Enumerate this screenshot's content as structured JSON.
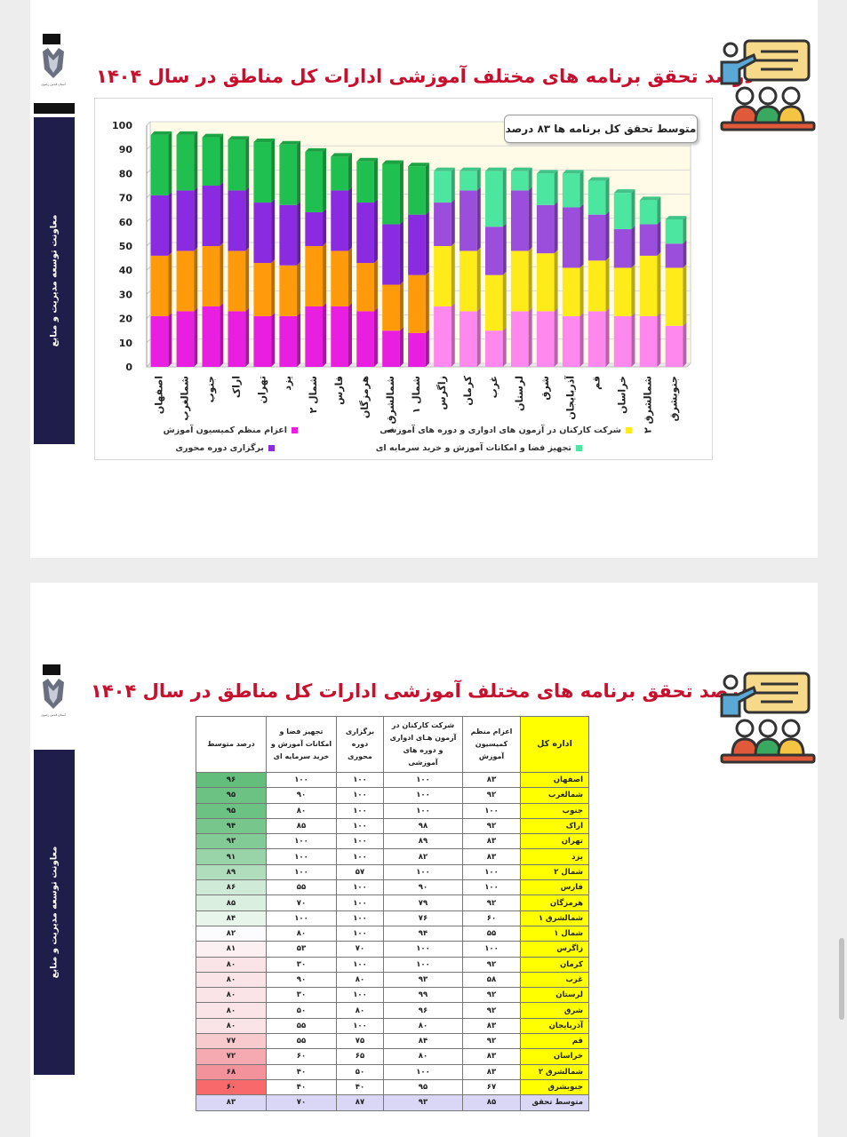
{
  "sidebar_text": "معاونت توسعه مدیریت و منابع",
  "logo_caption": "آستان قدس رضوی",
  "slide1": {
    "title": "درصد تحقق برنامه های مختلف آموزشی ادارات کل مناطق در سال ۱۴۰۴",
    "callout": "متوسط تحقق کل برنامه ها ۸۳ درصد",
    "legend": [
      {
        "label": "اعزام منظم کمیسیون آموزش",
        "color": "#e81ee0"
      },
      {
        "label": "شرکت کارکنان در آزمون های ادواری و دوره های آموزشی",
        "color": "#ffeb1a"
      },
      {
        "label": "برگزاری دوره محوری",
        "color": "#8a2be2"
      },
      {
        "label": "تجهیز فضا و امکانات آموزش و خرید سرمایه ای",
        "color": "#4de6a0"
      }
    ]
  },
  "chart_data": {
    "type": "bar",
    "stacked": true,
    "title": "درصد تحقق برنامه های مختلف آموزشی ادارات کل مناطق در سال ۱۴۰۴",
    "ylim": [
      0,
      100
    ],
    "yticks": [
      0,
      10,
      20,
      30,
      40,
      50,
      60,
      70,
      80,
      90,
      100
    ],
    "grid": true,
    "legend_position": "bottom",
    "categories": [
      "اصفهان",
      "شمالغرب",
      "جنوب",
      "اراک",
      "تهران",
      "یزد",
      "شمال ۲",
      "فارس",
      "هرمزگان",
      "شمالشرق ۱",
      "شمال ۱",
      "زاگرس",
      "کرمان",
      "غرب",
      "لرستان",
      "شرق",
      "آذربایجان",
      "قم",
      "خراسان",
      "شمالشرق ۲",
      "جنوبشرق"
    ],
    "group_colors": [
      {
        "group": 1,
        "count": 11,
        "colors": [
          "#e81ee0",
          "#ff9a0a",
          "#8a2be2",
          "#20c050"
        ]
      },
      {
        "group": 2,
        "count": 10,
        "colors": [
          "#ff88ee",
          "#ffeb1a",
          "#9b4ddb",
          "#4de6a0"
        ]
      }
    ],
    "series": [
      {
        "name": "اعزام منظم کمیسیون آموزش",
        "values": [
          21,
          23,
          25,
          23,
          21,
          21,
          25,
          25,
          23,
          15,
          14,
          25,
          23,
          15,
          23,
          23,
          21,
          23,
          21,
          21,
          17
        ]
      },
      {
        "name": "شرکت کارکنان در آزمون های ادواری و دوره های آموزشی",
        "values": [
          25,
          25,
          25,
          25,
          22,
          21,
          25,
          23,
          20,
          19,
          24,
          25,
          25,
          23,
          25,
          24,
          20,
          21,
          20,
          25,
          24
        ]
      },
      {
        "name": "برگزاری دوره محوری",
        "values": [
          25,
          25,
          25,
          25,
          25,
          25,
          14,
          25,
          25,
          25,
          25,
          18,
          25,
          20,
          25,
          20,
          25,
          19,
          16,
          13,
          10
        ]
      },
      {
        "name": "تجهیز فضا و امکانات آموزش و خرید سرمایه ای",
        "values": [
          25,
          23,
          20,
          21,
          25,
          25,
          25,
          14,
          17,
          25,
          20,
          13,
          8,
          23,
          8,
          13,
          14,
          14,
          15,
          10,
          10
        ]
      }
    ],
    "totals": [
      96,
      95,
      95,
      94,
      93,
      91,
      89,
      86,
      85,
      84,
      82,
      81,
      80,
      80,
      80,
      80,
      80,
      77,
      72,
      68,
      60
    ]
  },
  "slide2": {
    "title": "درصد تحقق برنامه های مختلف آموزشی ادارات کل مناطق در سال ۱۴۰۴",
    "headers": {
      "office": "اداره کل",
      "commission": "اعزام منظم کمیسیون آموزش",
      "exams": "شرکت کارکنان در آزمون هـای ادواری و دوره های آموزشی",
      "core": "برگزاری دوره محوری",
      "equip": "تجهیز فضا و امکانات آموزش و خرید سرمایه ای",
      "avg": "درصد متوسط"
    },
    "rows": [
      {
        "office": "اصفهان",
        "commission": "۸۳",
        "exams": "۱۰۰",
        "core": "۱۰۰",
        "equip": "۱۰۰",
        "avg": "۹۶",
        "avg_color": "#63be7b"
      },
      {
        "office": "شمالغرب",
        "commission": "۹۲",
        "exams": "۱۰۰",
        "core": "۱۰۰",
        "equip": "۹۰",
        "avg": "۹۵",
        "avg_color": "#6cc283"
      },
      {
        "office": "جنوب",
        "commission": "۱۰۰",
        "exams": "۱۰۰",
        "core": "۱۰۰",
        "equip": "۸۰",
        "avg": "۹۵",
        "avg_color": "#6cc283"
      },
      {
        "office": "اراک",
        "commission": "۹۲",
        "exams": "۹۸",
        "core": "۱۰۰",
        "equip": "۸۵",
        "avg": "۹۴",
        "avg_color": "#77c68c"
      },
      {
        "office": "تهران",
        "commission": "۸۳",
        "exams": "۸۹",
        "core": "۱۰۰",
        "equip": "۱۰۰",
        "avg": "۹۳",
        "avg_color": "#83cb96"
      },
      {
        "office": "یزد",
        "commission": "۸۳",
        "exams": "۸۲",
        "core": "۱۰۰",
        "equip": "۱۰۰",
        "avg": "۹۱",
        "avg_color": "#99d4a8"
      },
      {
        "office": "شمال ۲",
        "commission": "۱۰۰",
        "exams": "۱۰۰",
        "core": "۵۷",
        "equip": "۱۰۰",
        "avg": "۸۹",
        "avg_color": "#b0ddbb"
      },
      {
        "office": "فارس",
        "commission": "۱۰۰",
        "exams": "۹۰",
        "core": "۱۰۰",
        "equip": "۵۵",
        "avg": "۸۶",
        "avg_color": "#cfead6"
      },
      {
        "office": "هرمزگان",
        "commission": "۹۲",
        "exams": "۷۹",
        "core": "۱۰۰",
        "equip": "۷۰",
        "avg": "۸۵",
        "avg_color": "#dbefe0"
      },
      {
        "office": "شمالشرق ۱",
        "commission": "۶۰",
        "exams": "۷۶",
        "core": "۱۰۰",
        "equip": "۱۰۰",
        "avg": "۸۴",
        "avg_color": "#e8f5eb"
      },
      {
        "office": "شمال ۱",
        "commission": "۵۵",
        "exams": "۹۴",
        "core": "۱۰۰",
        "equip": "۸۰",
        "avg": "۸۲",
        "avg_color": "#fcfcff"
      },
      {
        "office": "زاگرس",
        "commission": "۱۰۰",
        "exams": "۱۰۰",
        "core": "۷۰",
        "equip": "۵۳",
        "avg": "۸۱",
        "avg_color": "#fdf0f2"
      },
      {
        "office": "کرمان",
        "commission": "۹۲",
        "exams": "۱۰۰",
        "core": "۱۰۰",
        "equip": "۳۰",
        "avg": "۸۰",
        "avg_color": "#fbe4e7"
      },
      {
        "office": "غرب",
        "commission": "۵۸",
        "exams": "۹۳",
        "core": "۸۰",
        "equip": "۹۰",
        "avg": "۸۰",
        "avg_color": "#fbe4e7"
      },
      {
        "office": "لرستان",
        "commission": "۹۲",
        "exams": "۹۹",
        "core": "۱۰۰",
        "equip": "۳۰",
        "avg": "۸۰",
        "avg_color": "#fbe4e7"
      },
      {
        "office": "شرق",
        "commission": "۹۲",
        "exams": "۹۶",
        "core": "۸۰",
        "equip": "۵۰",
        "avg": "۸۰",
        "avg_color": "#fbe4e7"
      },
      {
        "office": "آذربایجان",
        "commission": "۸۳",
        "exams": "۸۰",
        "core": "۱۰۰",
        "equip": "۵۵",
        "avg": "۸۰",
        "avg_color": "#fbe4e7"
      },
      {
        "office": "قم",
        "commission": "۹۲",
        "exams": "۸۴",
        "core": "۷۵",
        "equip": "۵۵",
        "avg": "۷۷",
        "avg_color": "#f8c9cd"
      },
      {
        "office": "خراسان",
        "commission": "۸۳",
        "exams": "۸۰",
        "core": "۶۵",
        "equip": "۶۰",
        "avg": "۷۲",
        "avg_color": "#f5aab1"
      },
      {
        "office": "شمالشرق ۲",
        "commission": "۸۳",
        "exams": "۱۰۰",
        "core": "۵۰",
        "equip": "۴۰",
        "avg": "۶۸",
        "avg_color": "#f3929b"
      },
      {
        "office": "جنوبشرق",
        "commission": "۶۷",
        "exams": "۹۵",
        "core": "۴۰",
        "equip": "۴۰",
        "avg": "۶۰",
        "avg_color": "#f8696b"
      }
    ],
    "average_row": {
      "office": "متوسط تحقق",
      "commission": "۸۵",
      "exams": "۹۳",
      "core": "۸۷",
      "equip": "۷۰",
      "avg": "۸۳"
    }
  }
}
